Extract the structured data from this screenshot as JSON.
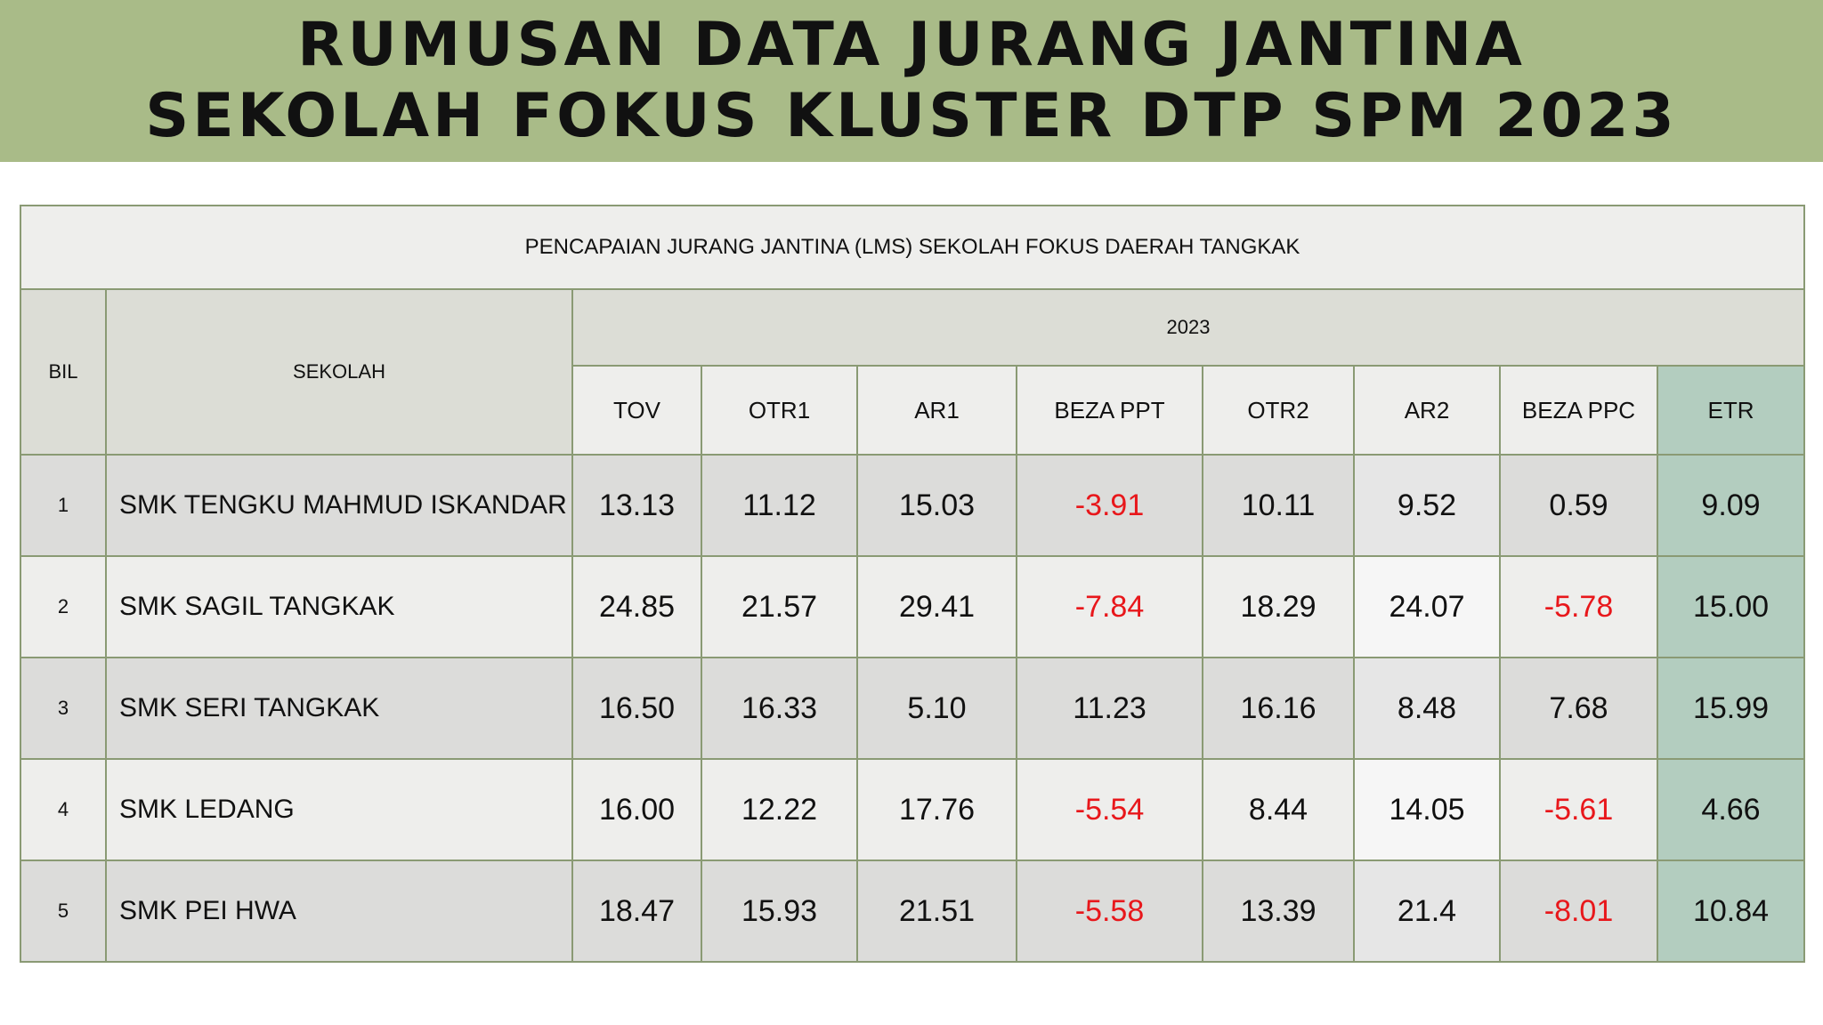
{
  "header": {
    "title_line1": "RUMUSAN DATA JURANG JANTINA",
    "title_line2": "SEKOLAH FOKUS KLUSTER DTP SPM 2023"
  },
  "table": {
    "caption": "PENCAPAIAN JURANG JANTINA (LMS) SEKOLAH FOKUS DAERAH TANGKAK",
    "bil_header": "BIL",
    "sekolah_header": "SEKOLAH",
    "year": "2023",
    "columns": [
      "TOV",
      "OTR1",
      "AR1",
      "BEZA PPT",
      "OTR2",
      "AR2",
      "BEZA PPC",
      "ETR"
    ],
    "rows": [
      {
        "bil": "1",
        "sekolah": "SMK TENGKU MAHMUD ISKANDAR",
        "values": [
          "13.13",
          "11.12",
          "15.03",
          "-3.91",
          "10.11",
          "9.52",
          "0.59",
          "9.09"
        ]
      },
      {
        "bil": "2",
        "sekolah": "SMK SAGIL TANGKAK",
        "values": [
          "24.85",
          "21.57",
          "29.41",
          "-7.84",
          "18.29",
          "24.07",
          "-5.78",
          "15.00"
        ]
      },
      {
        "bil": "3",
        "sekolah": "SMK SERI TANGKAK",
        "values": [
          "16.50",
          "16.33",
          "5.10",
          "11.23",
          "16.16",
          "8.48",
          "7.68",
          "15.99"
        ]
      },
      {
        "bil": "4",
        "sekolah": "SMK LEDANG",
        "values": [
          "16.00",
          "12.22",
          "17.76",
          "-5.54",
          "8.44",
          "14.05",
          "-5.61",
          "4.66"
        ]
      },
      {
        "bil": "5",
        "sekolah": "SMK PEI HWA",
        "values": [
          "18.47",
          "15.93",
          "21.51",
          "-5.58",
          "13.39",
          "21.4",
          "-8.01",
          "10.84"
        ]
      }
    ]
  },
  "colors": {
    "banner": "#a9bb88",
    "negative": "#e8171b",
    "etr_column": "#b3cdbf",
    "border": "#8a9a74"
  }
}
